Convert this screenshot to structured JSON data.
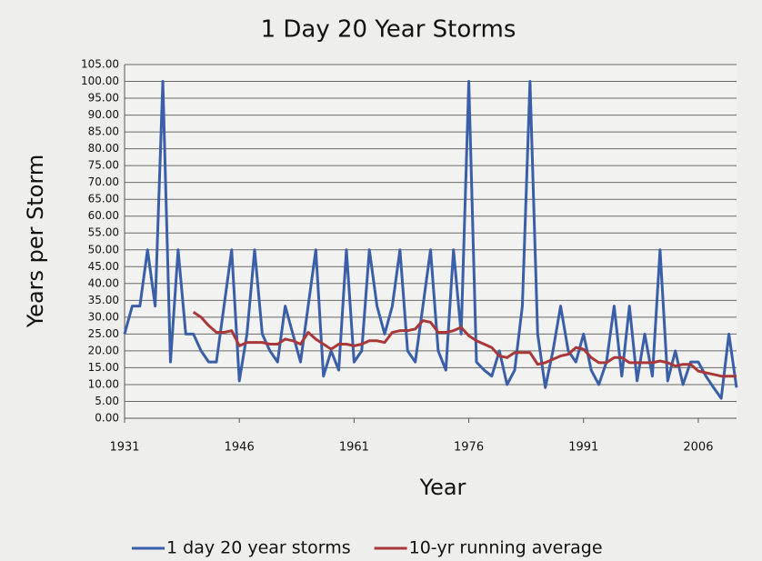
{
  "chart_data": {
    "type": "line",
    "title": "1 Day 20 Year Storms",
    "xlabel": "Year",
    "ylabel": "Years per Storm",
    "x": [
      1931,
      1932,
      1933,
      1934,
      1935,
      1936,
      1937,
      1938,
      1939,
      1940,
      1941,
      1942,
      1943,
      1944,
      1945,
      1946,
      1947,
      1948,
      1949,
      1950,
      1951,
      1952,
      1953,
      1954,
      1955,
      1956,
      1957,
      1958,
      1959,
      1960,
      1961,
      1962,
      1963,
      1964,
      1965,
      1966,
      1967,
      1968,
      1969,
      1970,
      1971,
      1972,
      1973,
      1974,
      1975,
      1976,
      1977,
      1978,
      1979,
      1980,
      1981,
      1982,
      1983,
      1984,
      1985,
      1986,
      1987,
      1988,
      1989,
      1990,
      1991,
      1992,
      1993,
      1994,
      1995,
      1996,
      1997,
      1998,
      1999,
      2000,
      2001,
      2002,
      2003,
      2004,
      2005,
      2006,
      2007,
      2008,
      2009,
      2010,
      2011
    ],
    "series": [
      {
        "name": "1 day 20 year storms",
        "color": "#3a5fa8",
        "values": [
          25,
          33.3,
          33.3,
          50,
          33.3,
          100,
          16.7,
          50,
          25,
          25,
          20,
          16.7,
          16.7,
          33.3,
          50,
          11.1,
          25,
          50,
          25,
          20,
          16.7,
          33.3,
          25,
          16.7,
          33.3,
          50,
          12.5,
          20,
          14.3,
          50,
          16.7,
          20,
          50,
          33.3,
          25,
          33.3,
          50,
          20,
          16.7,
          33.3,
          50,
          20,
          14.3,
          50,
          25,
          100,
          16.7,
          14.3,
          12.5,
          20,
          10,
          14.3,
          33.3,
          100,
          25,
          9.1,
          20,
          33.3,
          20,
          16.7,
          25,
          14.3,
          10,
          16.7,
          33.3,
          12.5,
          33.3,
          11.1,
          25,
          12.5,
          50,
          11.1,
          20,
          10,
          16.7,
          16.7,
          12.5,
          9.1,
          5.9,
          25,
          9.1
        ]
      },
      {
        "name": "10-yr running average",
        "color": "#a8383a",
        "values": [
          null,
          null,
          null,
          null,
          null,
          null,
          null,
          null,
          null,
          31.5,
          30,
          27.5,
          25.5,
          25.5,
          26,
          21.5,
          22.5,
          22.5,
          22.5,
          22,
          22,
          23.5,
          23,
          22,
          25.5,
          23.5,
          22,
          20.5,
          22,
          22,
          21.5,
          22,
          23,
          23,
          22.5,
          25.5,
          26,
          26,
          26.5,
          29,
          28.5,
          25.5,
          25.5,
          26,
          27,
          24.5,
          23,
          22,
          21,
          18.5,
          18,
          19.5,
          19.5,
          19.5,
          16,
          16.5,
          17.5,
          18.5,
          19,
          21,
          20.5,
          18,
          16.5,
          16.5,
          18,
          18,
          16.5,
          16.5,
          16.5,
          16.5,
          17,
          16.5,
          15.5,
          16,
          16,
          14,
          13.5,
          13,
          12.5,
          12.5,
          12.5
        ]
      }
    ],
    "xlim": [
      1931,
      2011
    ],
    "xticks": [
      1931,
      1946,
      1961,
      1976,
      1991,
      2006
    ],
    "ylim": [
      0,
      105
    ],
    "yticks": [
      {
        "value": 0,
        "label": "0.00"
      },
      {
        "value": 5,
        "label": "5.00"
      },
      {
        "value": 10,
        "label": "10.00"
      },
      {
        "value": 15,
        "label": "15.00"
      },
      {
        "value": 20,
        "label": "20.00"
      },
      {
        "value": 25,
        "label": "25.00"
      },
      {
        "value": 30,
        "label": "30.00"
      },
      {
        "value": 35,
        "label": "35.00"
      },
      {
        "value": 40,
        "label": "40.00"
      },
      {
        "value": 45,
        "label": "45.00"
      },
      {
        "value": 50,
        "label": "50.00"
      },
      {
        "value": 55,
        "label": "55.00"
      },
      {
        "value": 60,
        "label": "60.00"
      },
      {
        "value": 65,
        "label": "65.00"
      },
      {
        "value": 70,
        "label": "70.00"
      },
      {
        "value": 75,
        "label": "75.00"
      },
      {
        "value": 80,
        "label": "80.00"
      },
      {
        "value": 85,
        "label": "85.00"
      },
      {
        "value": 90,
        "label": "90.00"
      },
      {
        "value": 95,
        "label": "95.00"
      },
      {
        "value": 100,
        "label": "100.00"
      },
      {
        "value": 105,
        "label": "105.00"
      }
    ],
    "grid": true,
    "legend": "bottom"
  }
}
